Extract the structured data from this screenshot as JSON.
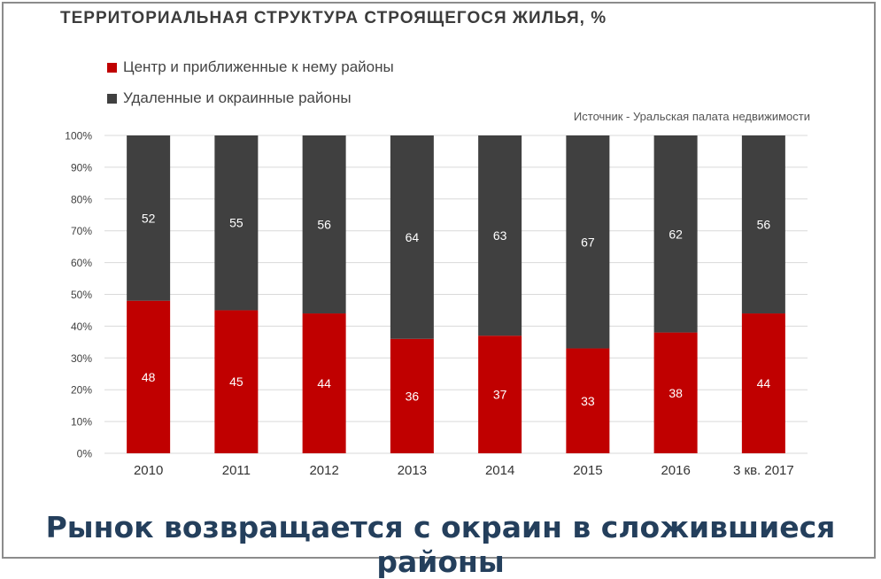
{
  "chart_data": {
    "type": "bar",
    "stacked": true,
    "title": "ТЕРРИТОРИАЛЬНАЯ СТРУКТУРА СТРОЯЩЕГОСЯ ЖИЛЬЯ, %",
    "source": "Источник - Уральская палата недвижимости",
    "categories": [
      "2010",
      "2011",
      "2012",
      "2013",
      "2014",
      "2015",
      "2016",
      "3 кв. 2017"
    ],
    "series": [
      {
        "name": "Центр и приближенные к нему районы",
        "values": [
          48,
          45,
          44,
          36,
          37,
          33,
          38,
          44
        ],
        "color": "#c00000"
      },
      {
        "name": "Удаленные и окраинные районы",
        "values": [
          52,
          55,
          56,
          64,
          63,
          67,
          62,
          56
        ],
        "color": "#404040"
      }
    ],
    "yticks": [
      "0%",
      "10%",
      "20%",
      "30%",
      "40%",
      "50%",
      "60%",
      "70%",
      "80%",
      "90%",
      "100%"
    ],
    "ylim": [
      0,
      100
    ],
    "grid": true,
    "legend": "top-left"
  },
  "footer_text": "Рынок возвращается с окраин в сложившиеся районы"
}
